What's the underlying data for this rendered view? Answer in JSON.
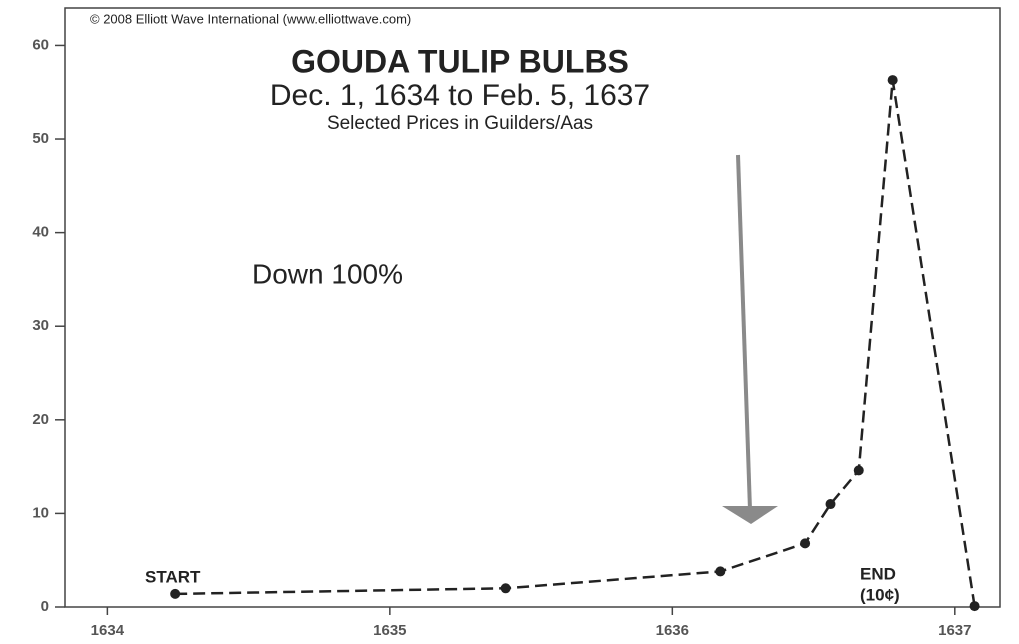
{
  "chart_data": {
    "type": "line",
    "copyright": "© 2008 Elliott Wave International (www.elliottwave.com)",
    "title": "GOUDA TULIP BULBS",
    "subtitle": "Dec. 1, 1634 to Feb. 5, 1637",
    "note": "Selected Prices in Guilders/Aas",
    "annotations": [
      "Down 100%",
      "START",
      "END",
      "(10¢)"
    ],
    "x": [
      1634.24,
      1635.41,
      1636.17,
      1636.47,
      1636.56,
      1636.66,
      1636.78,
      1637.07
    ],
    "series": [
      {
        "color": "#222222",
        "values": [
          1.4,
          2.0,
          3.8,
          6.8,
          11,
          14.6,
          56.3,
          0.1
        ]
      }
    ],
    "xlim": [
      1633.85,
      1637.16
    ],
    "xticks": [
      1634,
      1635,
      1636,
      1637
    ],
    "ylim": [
      0,
      64
    ],
    "yticks": [
      0,
      10,
      20,
      30,
      40,
      50,
      60
    ],
    "dashed": true
  }
}
